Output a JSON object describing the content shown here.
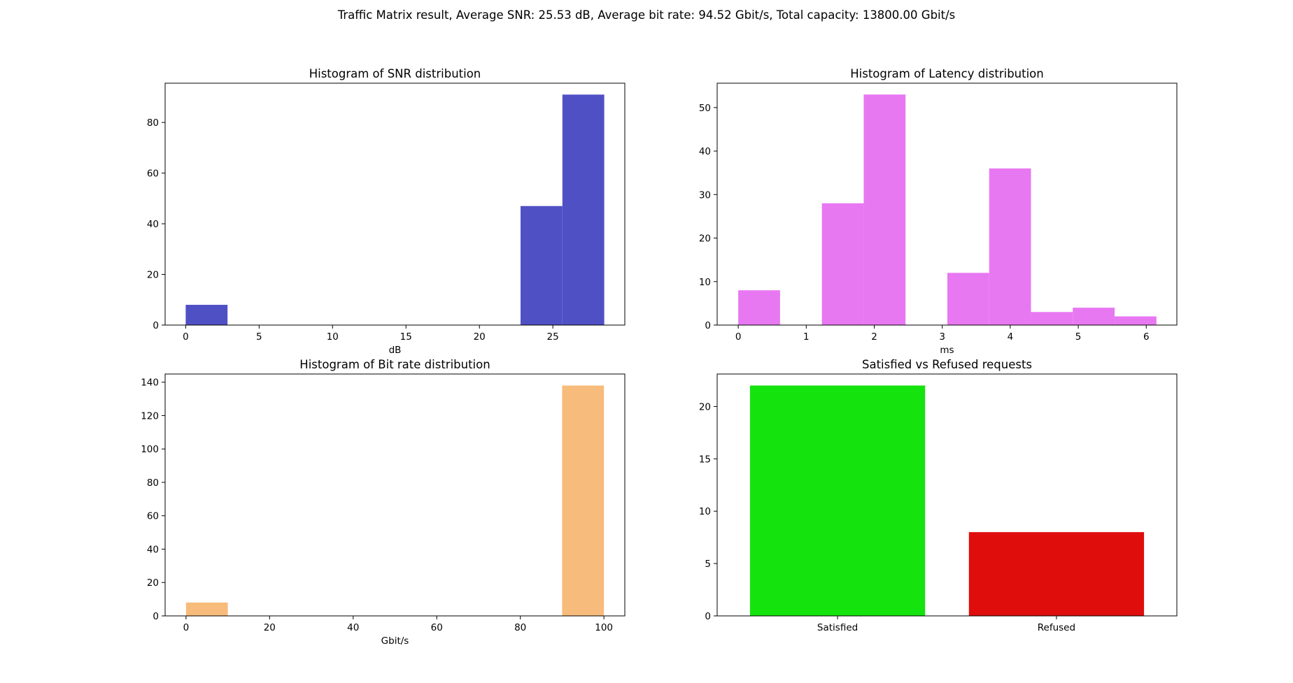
{
  "suptitle": "Traffic Matrix result, Average SNR: 25.53 dB, Average bit rate: 94.52 Gbit/s, Total capacity: 13800.00 Gbit/s",
  "chart_data": [
    {
      "id": "snr",
      "type": "bar",
      "title": "Histogram of SNR distribution",
      "xlabel": "dB",
      "ylabel": "",
      "color": "#5050c5",
      "xlim": [
        -1.4,
        29.9
      ],
      "ylim": [
        0,
        95.5
      ],
      "xticks": [
        0,
        5,
        10,
        15,
        20,
        25
      ],
      "yticks": [
        0,
        20,
        40,
        60,
        80
      ],
      "bins": [
        {
          "x0": 0.0,
          "x1": 2.85,
          "value": 8
        },
        {
          "x0": 2.85,
          "x1": 5.7,
          "value": 0
        },
        {
          "x0": 5.7,
          "x1": 8.55,
          "value": 0
        },
        {
          "x0": 8.55,
          "x1": 11.4,
          "value": 0
        },
        {
          "x0": 11.4,
          "x1": 14.25,
          "value": 0
        },
        {
          "x0": 14.25,
          "x1": 17.1,
          "value": 0
        },
        {
          "x0": 17.1,
          "x1": 19.95,
          "value": 0
        },
        {
          "x0": 19.95,
          "x1": 22.8,
          "value": 0
        },
        {
          "x0": 22.8,
          "x1": 25.65,
          "value": 47
        },
        {
          "x0": 25.65,
          "x1": 28.5,
          "value": 91
        }
      ]
    },
    {
      "id": "latency",
      "type": "bar",
      "title": "Histogram of Latency distribution",
      "xlabel": "ms",
      "ylabel": "",
      "color": "#e878f2",
      "xlim": [
        -0.31,
        6.45
      ],
      "ylim": [
        0,
        55.6
      ],
      "xticks": [
        0,
        1,
        2,
        3,
        4,
        5,
        6
      ],
      "yticks": [
        0,
        10,
        20,
        30,
        40,
        50
      ],
      "bins": [
        {
          "x0": 0.0,
          "x1": 0.615,
          "value": 8
        },
        {
          "x0": 0.615,
          "x1": 1.23,
          "value": 0
        },
        {
          "x0": 1.23,
          "x1": 1.845,
          "value": 28
        },
        {
          "x0": 1.845,
          "x1": 2.46,
          "value": 53
        },
        {
          "x0": 2.46,
          "x1": 3.075,
          "value": 0
        },
        {
          "x0": 3.075,
          "x1": 3.69,
          "value": 12
        },
        {
          "x0": 3.69,
          "x1": 4.305,
          "value": 36
        },
        {
          "x0": 4.305,
          "x1": 4.92,
          "value": 3
        },
        {
          "x0": 4.92,
          "x1": 5.535,
          "value": 4
        },
        {
          "x0": 5.535,
          "x1": 6.15,
          "value": 2
        }
      ]
    },
    {
      "id": "bitrate",
      "type": "bar",
      "title": "Histogram of Bit rate distribution",
      "xlabel": "Gbit/s",
      "ylabel": "",
      "color": "#f7bb7b",
      "xlim": [
        -5,
        105
      ],
      "ylim": [
        0,
        144.9
      ],
      "xticks": [
        0,
        20,
        40,
        60,
        80,
        100
      ],
      "yticks": [
        0,
        20,
        40,
        60,
        80,
        100,
        120,
        140
      ],
      "bins": [
        {
          "x0": 0,
          "x1": 10,
          "value": 8
        },
        {
          "x0": 10,
          "x1": 20,
          "value": 0
        },
        {
          "x0": 20,
          "x1": 30,
          "value": 0
        },
        {
          "x0": 30,
          "x1": 40,
          "value": 0
        },
        {
          "x0": 40,
          "x1": 50,
          "value": 0
        },
        {
          "x0": 50,
          "x1": 60,
          "value": 0
        },
        {
          "x0": 60,
          "x1": 70,
          "value": 0
        },
        {
          "x0": 70,
          "x1": 80,
          "value": 0
        },
        {
          "x0": 80,
          "x1": 90,
          "value": 0
        },
        {
          "x0": 90,
          "x1": 100,
          "value": 138
        }
      ]
    },
    {
      "id": "requests",
      "type": "bar",
      "title": "Satisfied vs Refused requests",
      "xlabel": "",
      "ylabel": "",
      "categories": [
        "Satisfied",
        "Refused"
      ],
      "values": [
        22,
        8
      ],
      "colors": [
        "#14e30e",
        "#e00d0d"
      ],
      "ylim": [
        0,
        23.1
      ],
      "yticks": [
        0,
        5,
        10,
        15,
        20
      ]
    }
  ]
}
